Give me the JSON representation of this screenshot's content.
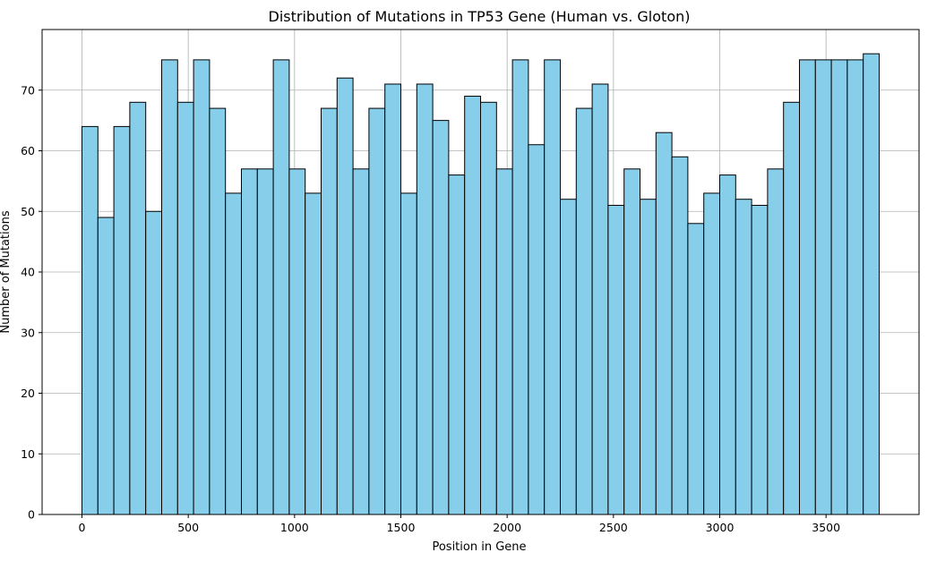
{
  "chart_data": {
    "type": "bar",
    "title": "Distribution of Mutations in TP53 Gene (Human vs. Gloton)",
    "xlabel": "Position in Gene",
    "ylabel": "Number of Mutations",
    "xlim": [
      -187.5,
      3937.5
    ],
    "ylim": [
      0,
      80
    ],
    "xticks": [
      0,
      500,
      1000,
      1500,
      2000,
      2500,
      3000,
      3500
    ],
    "yticks": [
      0,
      10,
      20,
      30,
      40,
      50,
      60,
      70
    ],
    "grid": true,
    "bin_start": 0,
    "bin_width": 75,
    "values": [
      64,
      49,
      64,
      68,
      50,
      75,
      68,
      75,
      67,
      53,
      57,
      57,
      75,
      57,
      53,
      67,
      72,
      57,
      67,
      71,
      53,
      71,
      65,
      56,
      69,
      68,
      57,
      75,
      61,
      75,
      52,
      67,
      71,
      51,
      57,
      52,
      63,
      59,
      48,
      53,
      56,
      52,
      51,
      57,
      68,
      75,
      75,
      75,
      75,
      76
    ],
    "bar_color": "#87ceeb",
    "edge_color": "#000000"
  }
}
